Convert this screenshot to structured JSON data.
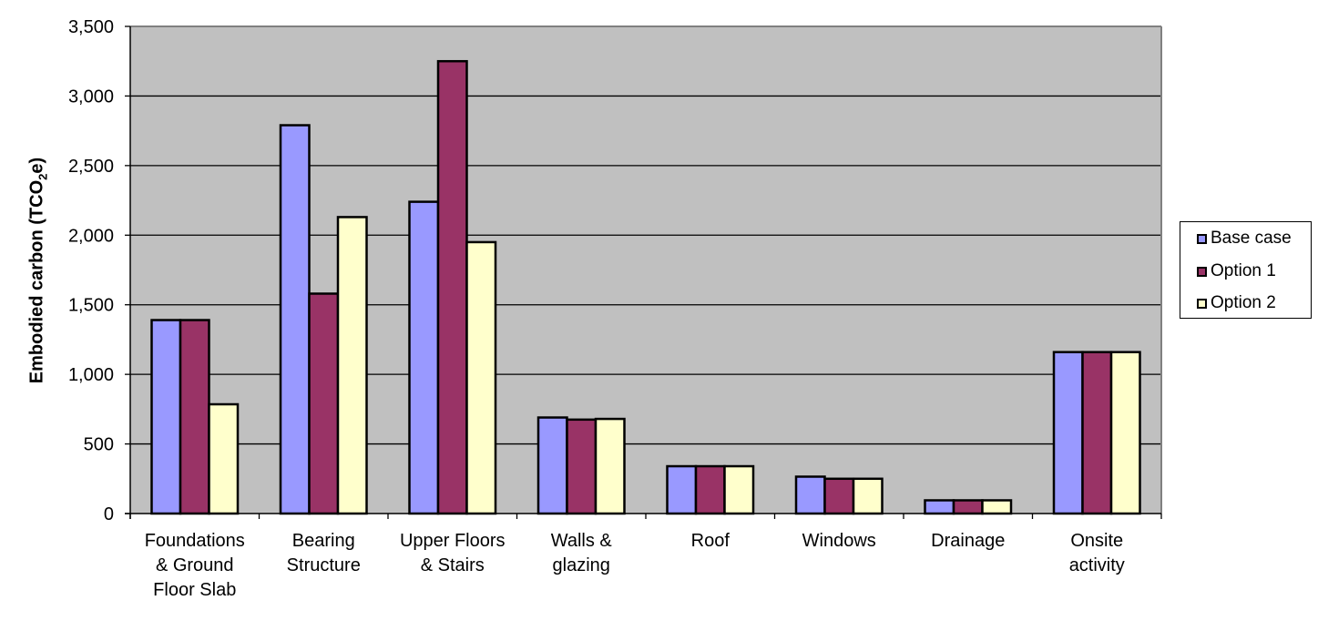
{
  "chart_data": {
    "type": "bar",
    "title": "",
    "xlabel": "",
    "ylabel": "Embodied carbon (TCO2e)",
    "ylabel_parts": {
      "main": "Embodied carbon (TCO",
      "sub": "2",
      "tail": "e)"
    },
    "ylim": [
      0,
      3500
    ],
    "yticks": [
      0,
      500,
      1000,
      1500,
      2000,
      2500,
      3000,
      3500
    ],
    "ytick_labels": [
      "0",
      "500",
      "1,000",
      "1,500",
      "2,000",
      "2,500",
      "3,000",
      "3,500"
    ],
    "grid": true,
    "legend_position": "right",
    "categories": [
      [
        "Foundations",
        "& Ground",
        "Floor Slab"
      ],
      [
        "Bearing",
        "Structure"
      ],
      [
        "Upper Floors",
        "& Stairs"
      ],
      [
        "Walls &",
        "glazing"
      ],
      [
        "Roof"
      ],
      [
        "Windows"
      ],
      [
        "Drainage"
      ],
      [
        "Onsite",
        "activity"
      ]
    ],
    "category_names": [
      "Foundations & Ground Floor Slab",
      "Bearing Structure",
      "Upper Floors & Stairs",
      "Walls & glazing",
      "Roof",
      "Windows",
      "Drainage",
      "Onsite activity"
    ],
    "series": [
      {
        "name": "Base case",
        "color": "#9999FF",
        "values": [
          1390,
          2790,
          2240,
          690,
          340,
          265,
          95,
          1160
        ]
      },
      {
        "name": "Option 1",
        "color": "#993366",
        "values": [
          1390,
          1580,
          3250,
          675,
          340,
          250,
          95,
          1160
        ]
      },
      {
        "name": "Option 2",
        "color": "#FFFFCC",
        "values": [
          785,
          2130,
          1950,
          680,
          340,
          250,
          95,
          1160
        ]
      }
    ]
  },
  "style": {
    "plot_bg": "#C0C0C0",
    "plot_border": "#808080",
    "gridline": "#000000",
    "bar_outline": "#000000"
  }
}
